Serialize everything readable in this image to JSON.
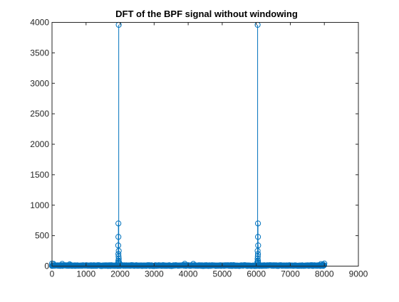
{
  "chart_data": {
    "type": "stem",
    "title": "DFT of the BPF signal without windowing",
    "xlabel": "",
    "ylabel": "",
    "xlim": [
      0,
      9000
    ],
    "ylim": [
      0,
      4000
    ],
    "xticks": [
      0,
      1000,
      2000,
      3000,
      4000,
      5000,
      6000,
      7000,
      8000,
      9000
    ],
    "yticks": [
      0,
      500,
      1000,
      1500,
      2000,
      2500,
      3000,
      3500,
      4000
    ],
    "grid": false,
    "series_color": "#0072BD",
    "x_extent": [
      0,
      8000
    ],
    "baseline_noise": 10,
    "peaks": [
      {
        "x": 1960,
        "y": 3960
      },
      {
        "x": 6040,
        "y": 3960
      }
    ],
    "sidelobes": [
      {
        "x": 1950,
        "y": 700
      },
      {
        "x": 1950,
        "y": 480
      },
      {
        "x": 1945,
        "y": 340
      },
      {
        "x": 1960,
        "y": 250
      },
      {
        "x": 1950,
        "y": 200
      },
      {
        "x": 1955,
        "y": 160
      },
      {
        "x": 1960,
        "y": 120
      },
      {
        "x": 1950,
        "y": 90
      },
      {
        "x": 1965,
        "y": 70
      },
      {
        "x": 1945,
        "y": 55
      },
      {
        "x": 1970,
        "y": 40
      },
      {
        "x": 6050,
        "y": 700
      },
      {
        "x": 6050,
        "y": 480
      },
      {
        "x": 6055,
        "y": 340
      },
      {
        "x": 6040,
        "y": 250
      },
      {
        "x": 6050,
        "y": 200
      },
      {
        "x": 6045,
        "y": 160
      },
      {
        "x": 6040,
        "y": 120
      },
      {
        "x": 6050,
        "y": 90
      },
      {
        "x": 6035,
        "y": 70
      },
      {
        "x": 6055,
        "y": 55
      },
      {
        "x": 6030,
        "y": 40
      }
    ]
  }
}
